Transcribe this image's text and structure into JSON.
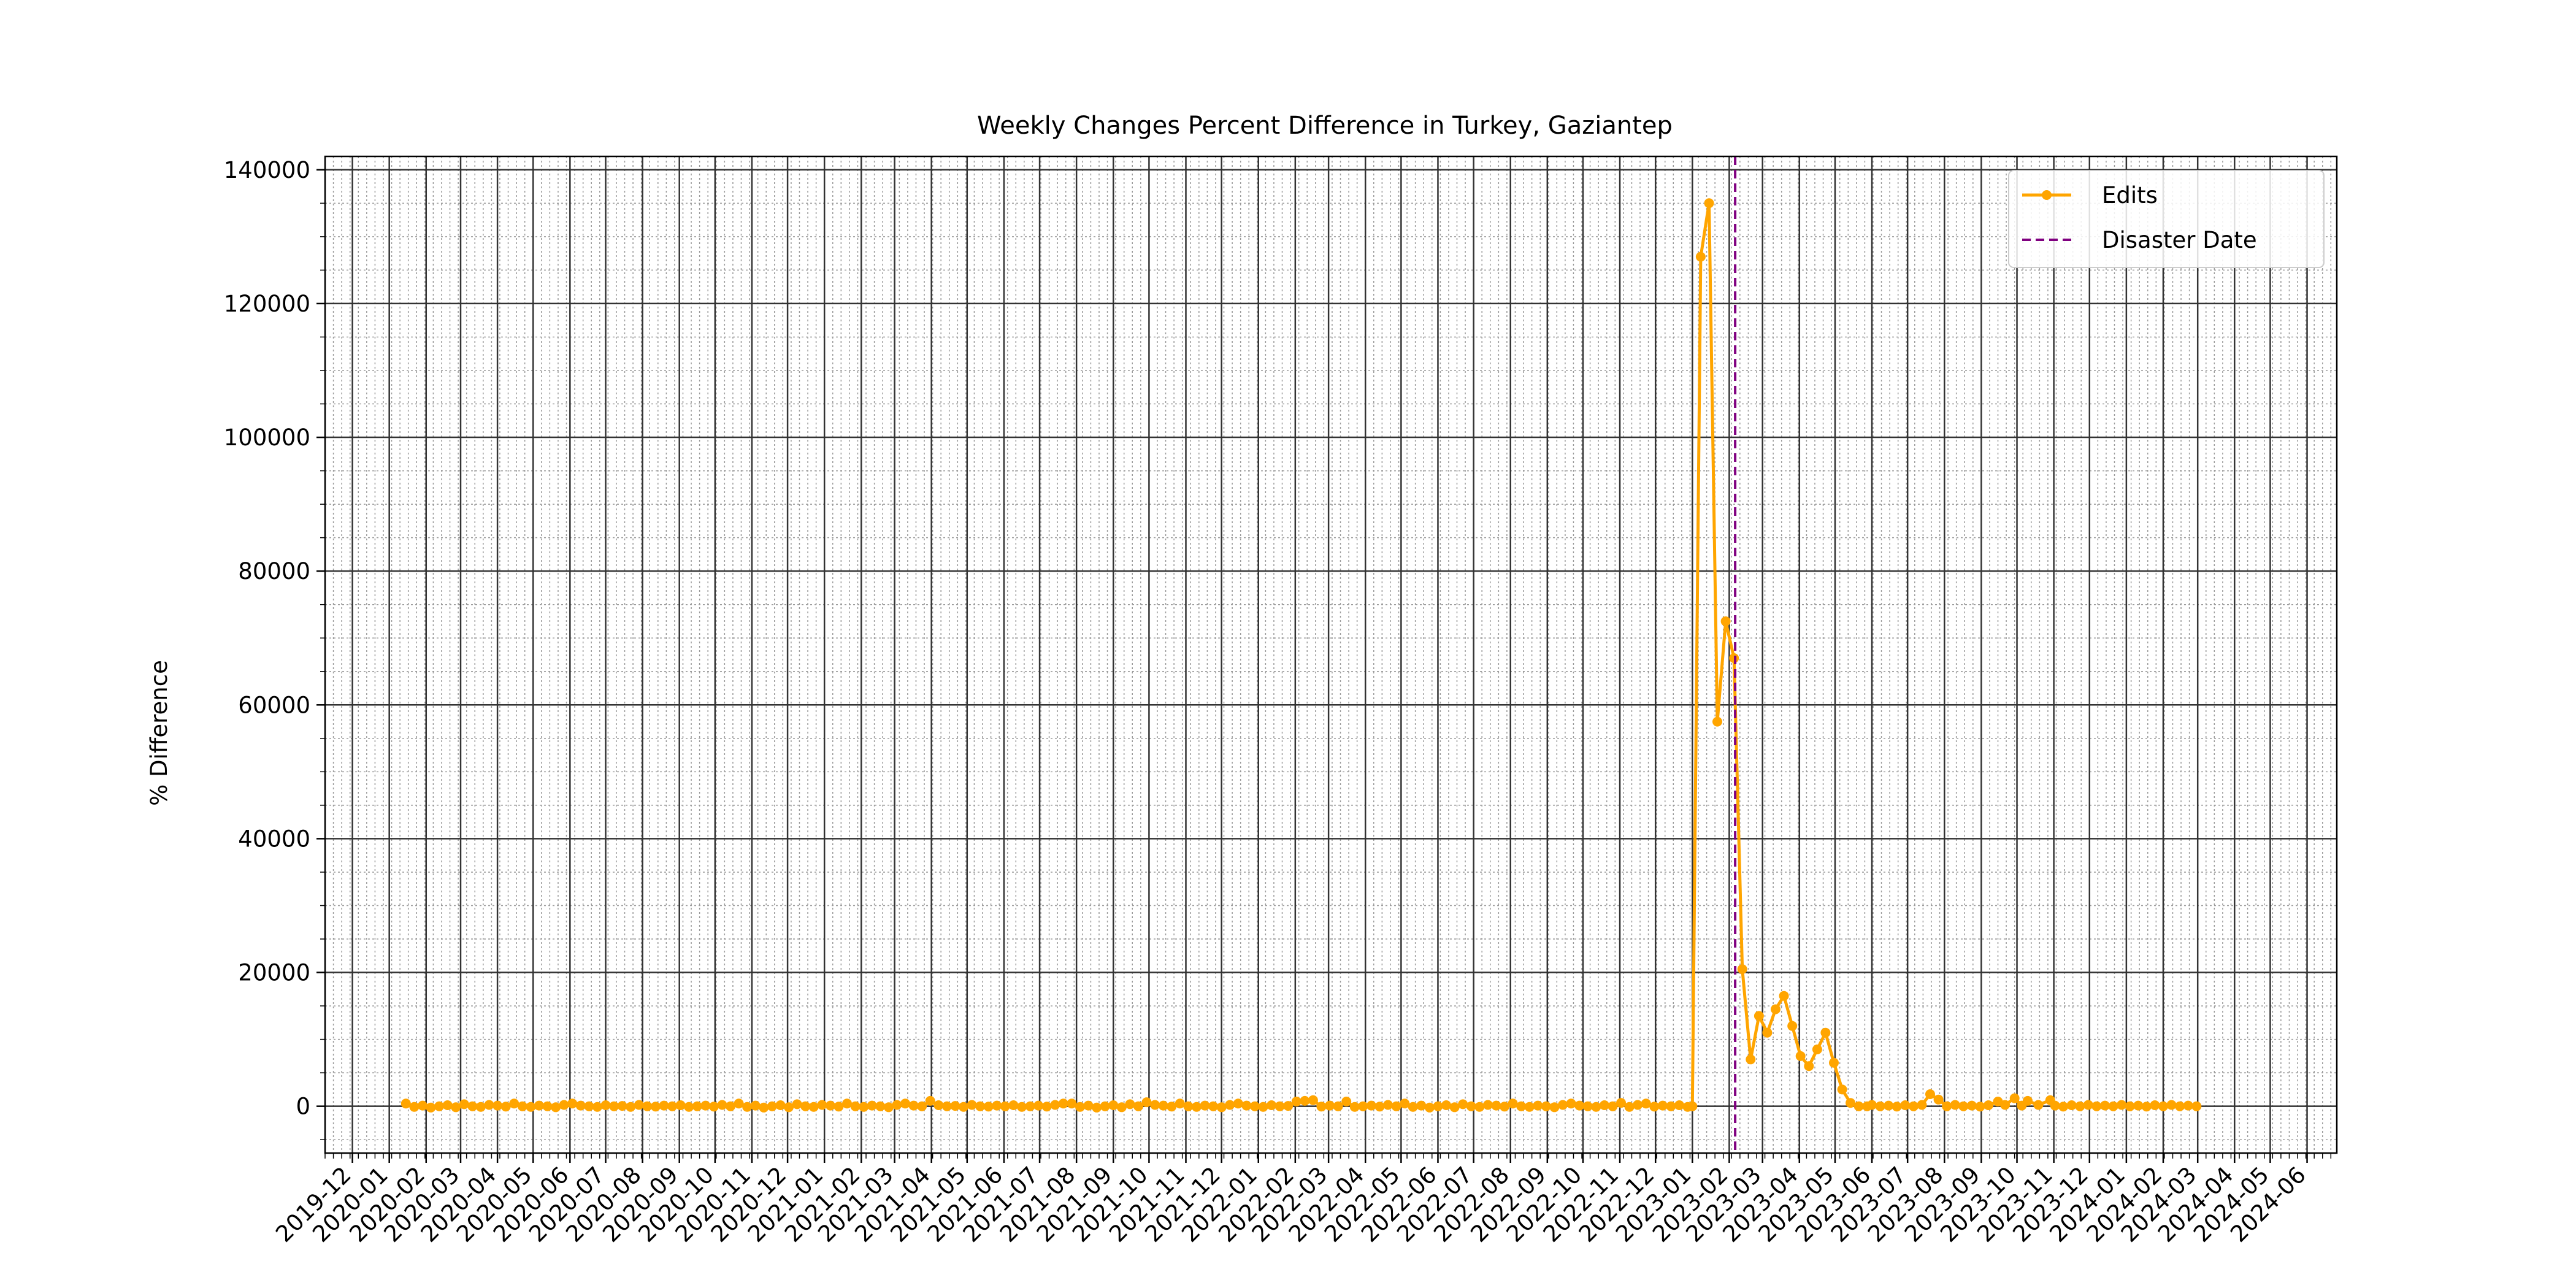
{
  "chart_data": {
    "type": "line",
    "title": "Weekly Changes Percent Difference in Turkey, Gaziantep",
    "xlabel": "",
    "ylabel": "% Difference",
    "xlim": [
      "2019-11-08",
      "2024-06-26"
    ],
    "ylim": [
      -7000,
      142000
    ],
    "y_ticks": [
      0,
      20000,
      40000,
      60000,
      80000,
      100000,
      120000,
      140000
    ],
    "x_ticks": [
      "2019-12",
      "2020-01",
      "2020-02",
      "2020-03",
      "2020-04",
      "2020-05",
      "2020-06",
      "2020-07",
      "2020-08",
      "2020-09",
      "2020-10",
      "2020-11",
      "2020-12",
      "2021-01",
      "2021-02",
      "2021-03",
      "2021-04",
      "2021-05",
      "2021-06",
      "2021-07",
      "2021-08",
      "2021-09",
      "2021-10",
      "2021-11",
      "2021-12",
      "2022-01",
      "2022-02",
      "2022-03",
      "2022-04",
      "2022-05",
      "2022-06",
      "2022-07",
      "2022-08",
      "2022-09",
      "2022-10",
      "2022-11",
      "2022-12",
      "2023-01",
      "2023-02",
      "2023-03",
      "2023-04",
      "2023-05",
      "2023-06",
      "2023-07",
      "2023-08",
      "2023-09",
      "2023-10",
      "2023-11",
      "2023-12",
      "2024-01",
      "2024-02",
      "2024-03",
      "2024-04",
      "2024-05",
      "2024-06"
    ],
    "grid": true,
    "minor_grid": true,
    "legend_position": "top-right",
    "series": [
      {
        "name": "Edits",
        "color": "#ffa500",
        "marker": "circle",
        "baseline_segments": [
          {
            "start": "2020-01-15",
            "end": "2022-12-31",
            "step_days": 7,
            "values": [
              400,
              -100,
              100,
              -200,
              0,
              150,
              -150,
              300,
              0,
              -100,
              200,
              100,
              -50,
              400,
              0,
              -100,
              100,
              0,
              -150,
              200,
              400,
              100,
              0,
              -100,
              150,
              0,
              50,
              -100,
              200,
              0,
              -50,
              100,
              0,
              150,
              -100,
              0,
              100,
              -50,
              200,
              0
            ]
          },
          {
            "start": "2023-06-01",
            "end": "2024-03-01",
            "step_days": 7,
            "values": [
              200,
              0,
              100,
              -50,
              150,
              0,
              200,
              0,
              100,
              0
            ]
          }
        ],
        "bumps": [
          {
            "x": "2021-04-01",
            "y": 800
          },
          {
            "x": "2021-07-20",
            "y": 400
          },
          {
            "x": "2021-10-01",
            "y": 600
          },
          {
            "x": "2022-02-01",
            "y": 700
          },
          {
            "x": "2022-02-10",
            "y": 800
          },
          {
            "x": "2022-02-17",
            "y": 900
          },
          {
            "x": "2022-03-15",
            "y": 700
          },
          {
            "x": "2022-11-01",
            "y": 500
          },
          {
            "x": "2022-11-20",
            "y": 400
          }
        ],
        "points": [
          {
            "x": "2023-01-01",
            "y": 0
          },
          {
            "x": "2023-01-08",
            "y": 127000
          },
          {
            "x": "2023-01-15",
            "y": 135000
          },
          {
            "x": "2023-01-22",
            "y": 57500
          },
          {
            "x": "2023-01-29",
            "y": 72500
          },
          {
            "x": "2023-02-05",
            "y": 67000
          },
          {
            "x": "2023-02-12",
            "y": 20500
          },
          {
            "x": "2023-02-19",
            "y": 7000
          },
          {
            "x": "2023-02-26",
            "y": 13500
          },
          {
            "x": "2023-03-05",
            "y": 11000
          },
          {
            "x": "2023-03-12",
            "y": 14500
          },
          {
            "x": "2023-03-19",
            "y": 16500
          },
          {
            "x": "2023-03-26",
            "y": 12000
          },
          {
            "x": "2023-04-02",
            "y": 7500
          },
          {
            "x": "2023-04-09",
            "y": 6000
          },
          {
            "x": "2023-04-16",
            "y": 8500
          },
          {
            "x": "2023-04-23",
            "y": 11000
          },
          {
            "x": "2023-04-30",
            "y": 6500
          },
          {
            "x": "2023-05-07",
            "y": 2500
          },
          {
            "x": "2023-05-14",
            "y": 500
          },
          {
            "x": "2023-05-21",
            "y": 0
          },
          {
            "x": "2023-05-28",
            "y": 0
          },
          {
            "x": "2023-07-20",
            "y": 1800
          },
          {
            "x": "2023-07-27",
            "y": 1000
          },
          {
            "x": "2023-09-15",
            "y": 700
          },
          {
            "x": "2023-09-29",
            "y": 1200
          },
          {
            "x": "2023-10-10",
            "y": 800
          },
          {
            "x": "2023-10-29",
            "y": 900
          }
        ]
      },
      {
        "name": "Disaster Date",
        "type": "vline",
        "color": "#800080",
        "x": "2023-02-06"
      }
    ]
  }
}
